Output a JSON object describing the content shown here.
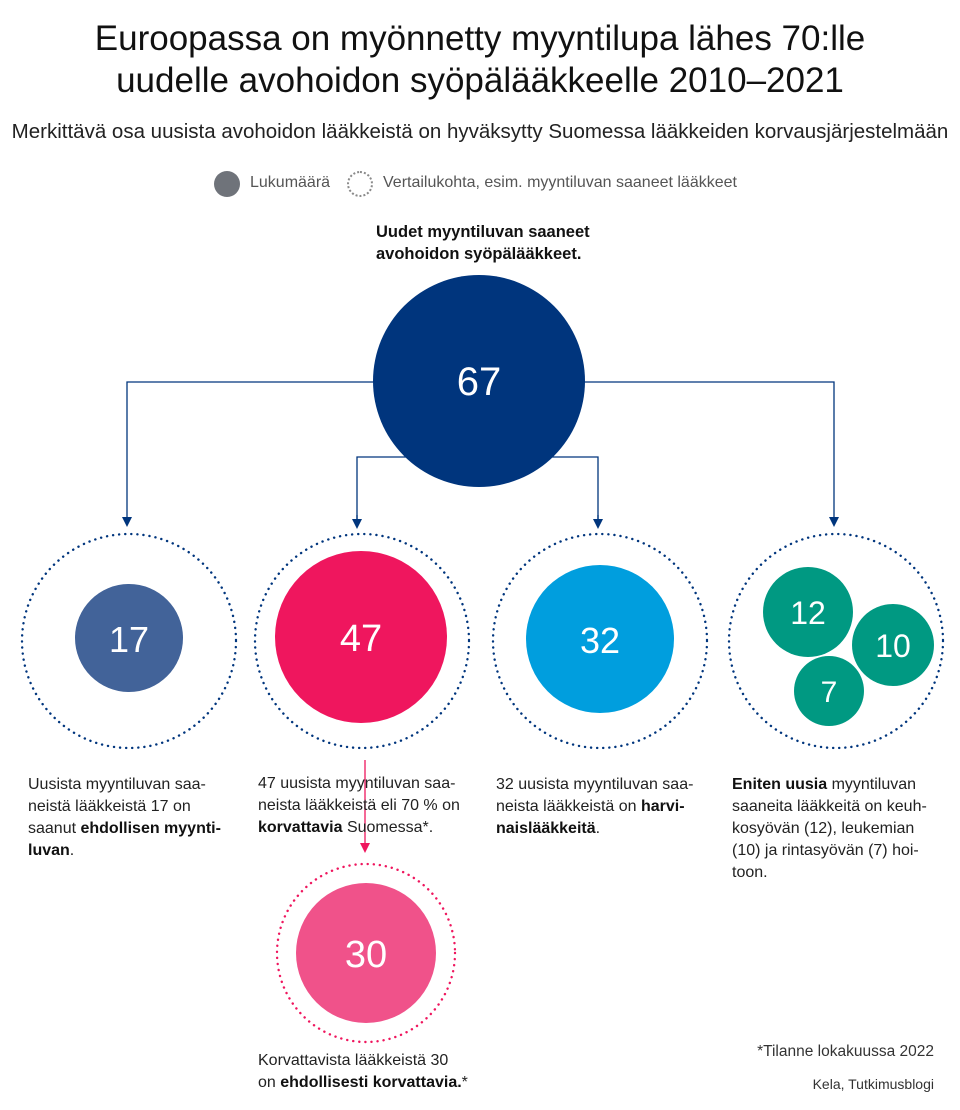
{
  "title": {
    "line1": "Euroopassa on myönnetty myyntilupa lähes 70:lle",
    "line2": "uudelle avohoidon syöpälääkkeelle 2010–2021"
  },
  "subtitle": "Merkittävä osa uusista avohoidon lääkkeistä on hyväksytty Suomessa lääkkeiden korvausjärjestelmään",
  "legend": {
    "count_label": "Lukumäärä",
    "reference_label": "Vertailukohta, esim. myyntiluvan saaneet lääkkeet"
  },
  "top_node": {
    "label_line1": "Uudet myyntiluvan saaneet",
    "label_line2": "avohoidon syöpälääkkeet.",
    "value": "67",
    "color": "#00357d"
  },
  "nodes": {
    "conditional": {
      "value": "17",
      "color": "#426399",
      "desc": {
        "l1": "Uusista myyntiluvan saa-",
        "l2": "neistä lääkkeistä 17 on",
        "l3_plain": "saanut ",
        "l3_bold": "ehdollisen myynti-",
        "l4_bold": "luvan",
        "l4_plain": "."
      }
    },
    "reimbursed": {
      "value": "47",
      "color": "#ef165e",
      "desc": {
        "l1": "47 uusista myyntiluvan saa-",
        "l2": "neista lääkkeistä eli 70 % on",
        "l3_bold": "korvattavia",
        "l3_plain": " Suomessa*."
      }
    },
    "rare": {
      "value": "32",
      "color": "#009ede",
      "desc": {
        "l1": "32 uusista myyntiluvan saa-",
        "l2_plain": "neista lääkkeistä on ",
        "l2_bold": "harvi-",
        "l3_bold": "naislääkkeitä",
        "l3_plain": "."
      }
    },
    "most_new": {
      "values": {
        "lung": "12",
        "leukemia": "10",
        "breast": "7"
      },
      "color": "#009982",
      "desc": {
        "l1_bold": "Eniten uusia",
        "l1_plain": " myyntiluvan",
        "l2": "saaneita lääkkeitä on keuh-",
        "l3": "kosyövän (12), leukemian",
        "l4": "(10) ja rintasyövän (7) hoi-",
        "l5": "toon."
      }
    },
    "cond_reimbursed": {
      "value": "30",
      "color": "#f0528a",
      "desc": {
        "l1": "Korvattavista lääkkeistä 30",
        "l2_plain": "on ",
        "l2_bold": "ehdollisesti korvattavia.",
        "l2_tail": "*"
      }
    }
  },
  "colors": {
    "arrow_blue": "#00357d",
    "arrow_pink": "#ef165e",
    "dotted_blue": "#00357d",
    "dotted_pink": "#ef165e"
  },
  "footnote": "*Tilanne lokakuussa 2022",
  "source": "Kela, Tutkimusblogi"
}
